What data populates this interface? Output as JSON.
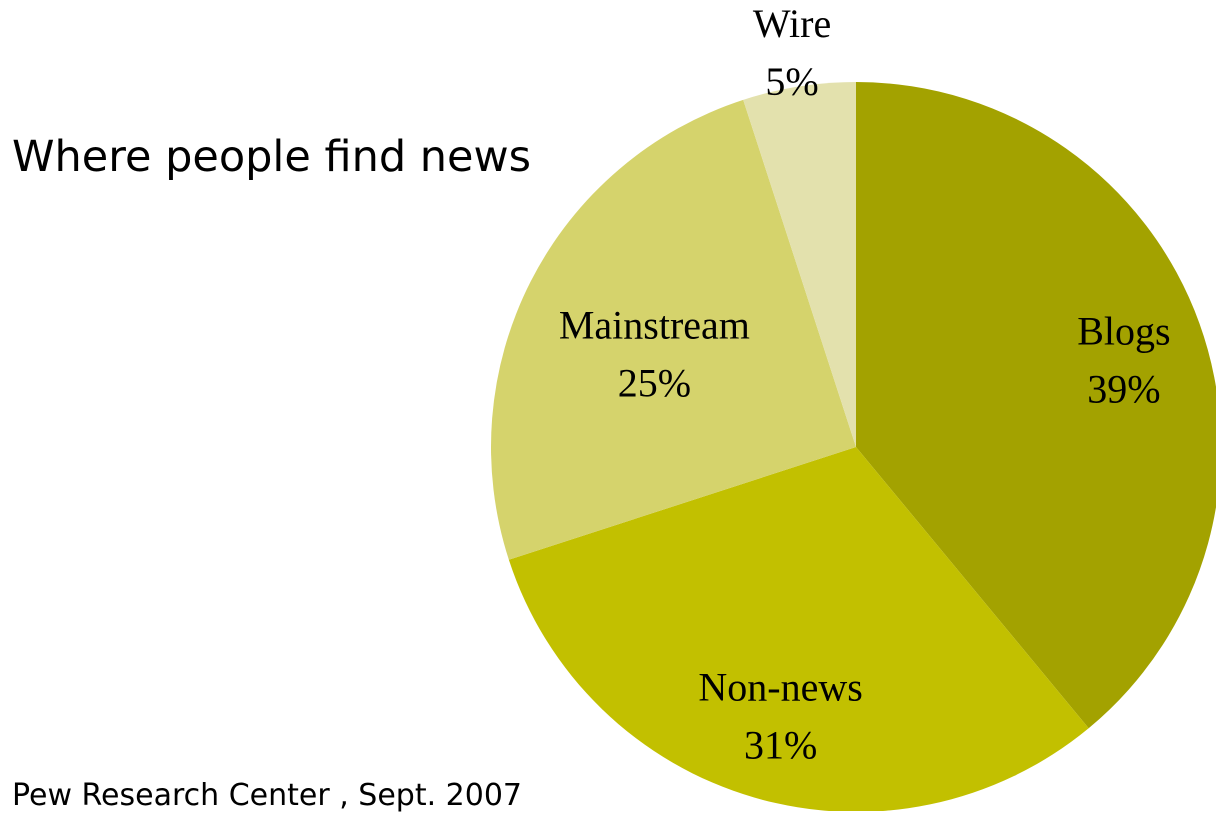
{
  "chart_data": {
    "type": "pie",
    "title": "Where people find news",
    "source": "Pew Research Center , Sept. 2007",
    "slices": [
      {
        "category": "Blogs",
        "value": 39,
        "label_value": "39%",
        "color": "#a3a200"
      },
      {
        "category": "Non-news",
        "value": 31,
        "label_value": "31%",
        "color": "#c2c000"
      },
      {
        "category": "Mainstream",
        "value": 25,
        "label_value": "25%",
        "color": "#d5d36c"
      },
      {
        "category": "Wire",
        "value": 5,
        "label_value": "5%",
        "color": "#e3e1ad"
      }
    ],
    "start_angle": "12 o'clock",
    "direction": "clockwise"
  }
}
